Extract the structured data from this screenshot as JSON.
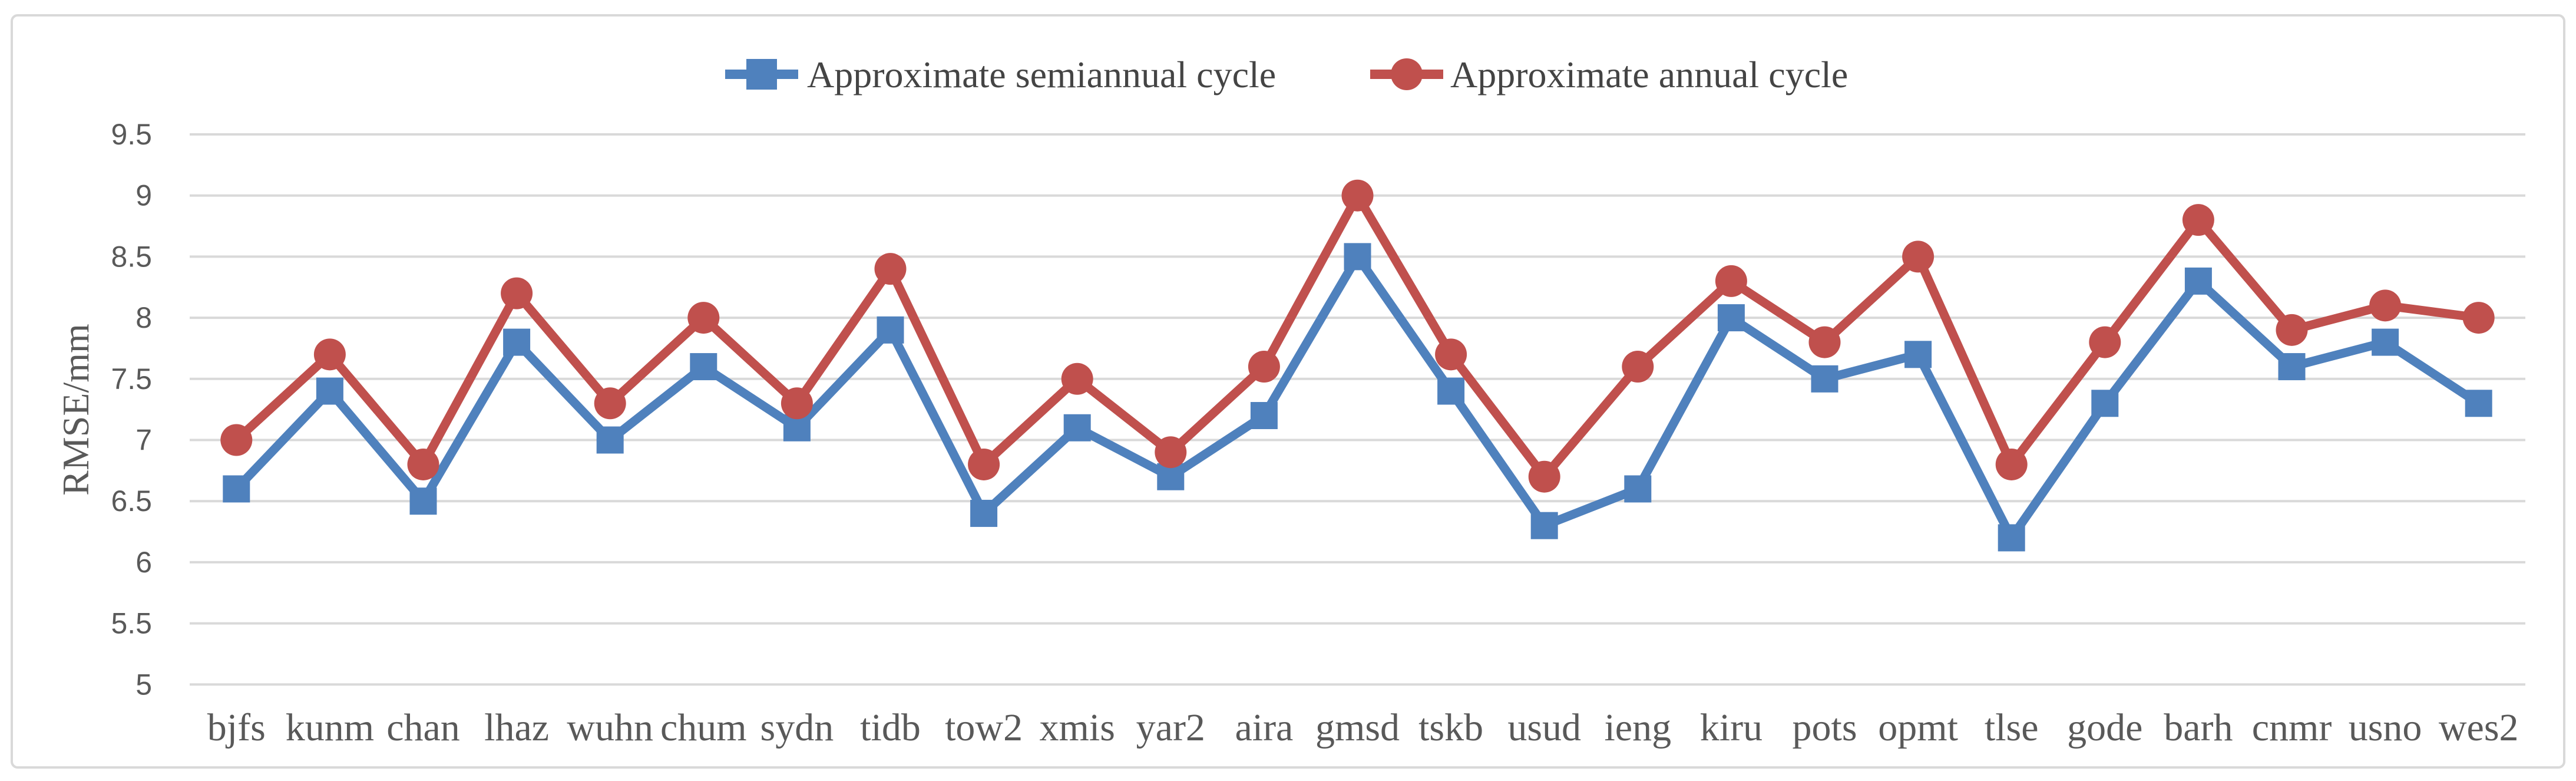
{
  "chart_data": {
    "type": "line",
    "title": "",
    "xlabel": "",
    "ylabel": "RMSE/mm",
    "categories": [
      "bjfs",
      "kunm",
      "chan",
      "lhaz",
      "wuhn",
      "chum",
      "sydn",
      "tidb",
      "tow2",
      "xmis",
      "yar2",
      "aira",
      "gmsd",
      "tskb",
      "usud",
      "ieng",
      "kiru",
      "pots",
      "opmt",
      "tlse",
      "gode",
      "barh",
      "cnmr",
      "usno",
      "wes2"
    ],
    "series": [
      {
        "name": "Approximate semiannual cycle",
        "marker": "square",
        "color": "#4F81BD",
        "values": [
          6.6,
          7.4,
          6.5,
          7.8,
          7.0,
          7.6,
          7.1,
          7.9,
          6.4,
          7.1,
          6.7,
          7.2,
          8.5,
          7.4,
          6.3,
          6.6,
          8.0,
          7.5,
          7.7,
          6.2,
          7.3,
          8.3,
          7.6,
          7.8,
          7.3
        ]
      },
      {
        "name": "Approximate annual cycle",
        "marker": "circle",
        "color": "#C0504D",
        "values": [
          7.0,
          7.7,
          6.8,
          8.2,
          7.3,
          8.0,
          7.3,
          8.4,
          6.8,
          7.5,
          6.9,
          7.6,
          9.0,
          7.7,
          6.7,
          7.6,
          8.3,
          7.8,
          8.5,
          6.8,
          7.8,
          8.8,
          7.9,
          8.1,
          8.0
        ]
      }
    ],
    "y_axis": {
      "min": 5,
      "max": 9.5,
      "tick_interval": 0.5,
      "tick_values": [
        9.5,
        9,
        8.5,
        8,
        7.5,
        7,
        6.5,
        6,
        5.5,
        5
      ],
      "tick_labels": [
        "9.5",
        "9",
        "8.5",
        "8",
        "7.5",
        "7",
        "6.5",
        "6",
        "5.5",
        "5"
      ]
    },
    "grid": true,
    "legend_position": "top-center",
    "gridline_color": "#D9D9D9",
    "border_color": "#D9D9D9",
    "tick_text_color": "#595959",
    "legend_text_color": "#444444",
    "background_color": "#FFFFFF"
  }
}
